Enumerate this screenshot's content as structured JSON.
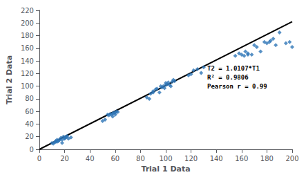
{
  "chart_data": {
    "type": "scatter",
    "xlabel": "Trial 1 Data",
    "ylabel": "Trial 2 Data",
    "annotations": [
      "T2 = 1.0107*T1",
      "R² = 0.9806",
      "Pearson r = 0.99"
    ],
    "series": [
      {
        "type": "scatter",
        "color": "#2E75B6",
        "marker": "diamond",
        "x": [
          10,
          11,
          12,
          13,
          13,
          14,
          14,
          15,
          15,
          16,
          17,
          18,
          18,
          19,
          20,
          20,
          21,
          21,
          22,
          23,
          25,
          50,
          52,
          54,
          55,
          56,
          57,
          58,
          58,
          59,
          60,
          60,
          61,
          62,
          85,
          87,
          88,
          90,
          90,
          92,
          93,
          95,
          96,
          97,
          98,
          99,
          100,
          100,
          101,
          102,
          103,
          104,
          105,
          106,
          107,
          118,
          120,
          122,
          125,
          128,
          130,
          155,
          158,
          160,
          162,
          163,
          165,
          165,
          168,
          170,
          172,
          175,
          178,
          180,
          182,
          183,
          185,
          187,
          190,
          195,
          198,
          200
        ],
        "values": [
          10,
          9,
          11,
          13,
          12,
          12,
          15,
          14,
          13,
          15,
          18,
          10,
          15,
          20,
          18,
          17,
          19,
          20,
          21,
          17,
          19,
          45,
          47,
          55,
          54,
          56,
          55,
          57,
          52,
          58,
          58,
          55,
          60,
          59,
          82,
          80,
          88,
          90,
          92,
          95,
          96,
          90,
          100,
          98,
          100,
          97,
          102,
          105,
          103,
          106,
          102,
          100,
          107,
          110,
          108,
          117,
          119,
          125,
          127,
          121,
          130,
          148,
          152,
          150,
          148,
          155,
          150,
          152,
          150,
          165,
          162,
          155,
          170,
          168,
          170,
          172,
          175,
          165,
          185,
          168,
          170,
          162
        ]
      },
      {
        "type": "line",
        "color": "#000000",
        "line_style": "solid",
        "x": [
          0,
          200
        ],
        "values": [
          0,
          202.14
        ]
      }
    ],
    "xlim": [
      0,
      200
    ],
    "ylim": [
      0,
      220
    ],
    "xticks": [
      0,
      20,
      40,
      60,
      80,
      100,
      120,
      140,
      160,
      180,
      200
    ],
    "yticks": [
      0,
      20,
      40,
      60,
      80,
      100,
      120,
      140,
      160,
      180,
      200,
      220
    ],
    "grid": false
  }
}
